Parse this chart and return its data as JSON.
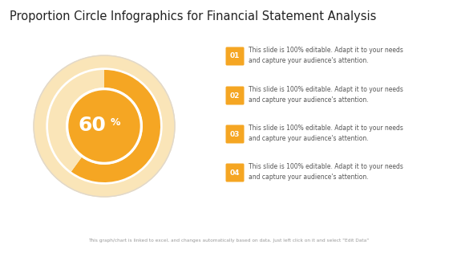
{
  "title": "Proportion Circle Infographics for Financial Statement Analysis",
  "title_fontsize": 10.5,
  "bg_color": "#ffffff",
  "donut_pct": 60,
  "donut_color": "#F5A623",
  "donut_bg_color": "#FAE5B8",
  "donut_inner_color": "#F5A623",
  "center_text": "60",
  "center_text_pct": "%",
  "items": [
    {
      "num": "01",
      "text": "This slide is 100% editable. Adapt it to your needs\nand capture your audience's attention."
    },
    {
      "num": "02",
      "text": "This slide is 100% editable. Adapt it to your needs\nand capture your audience's attention."
    },
    {
      "num": "03",
      "text": "This slide is 100% editable. Adapt it to your needs\nand capture your audience's attention."
    },
    {
      "num": "04",
      "text": "This slide is 100% editable. Adapt it to your needs\nand capture your audience's attention."
    }
  ],
  "item_box_color": "#F5A623",
  "item_num_color": "#ffffff",
  "item_text_color": "#555555",
  "footer_text": "This graph/chart is linked to excel, and changes automatically based on data. Just left click on it and select \"Edit Data\"",
  "footer_color": "#999999"
}
